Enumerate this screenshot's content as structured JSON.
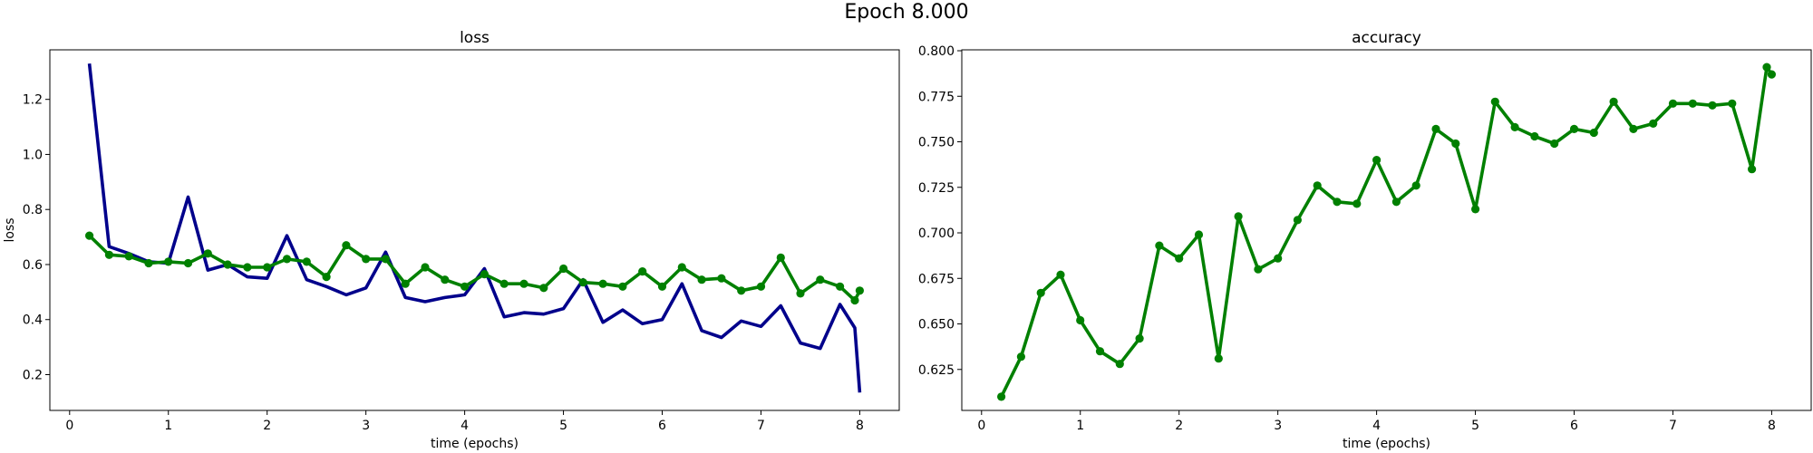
{
  "figure": {
    "suptitle": "Epoch 8.000"
  },
  "colors": {
    "train": "#00008b",
    "val": "#008000",
    "axis": "#000000",
    "background": "#ffffff"
  },
  "chart_data": [
    {
      "type": "line",
      "title": "loss",
      "xlabel": "time (epochs)",
      "ylabel": "loss",
      "xlim": [
        -0.2,
        8.4
      ],
      "ylim": [
        0.07,
        1.38
      ],
      "xticks": [
        0,
        1,
        2,
        3,
        4,
        5,
        6,
        7,
        8
      ],
      "xtick_labels": [
        "0",
        "1",
        "2",
        "3",
        "4",
        "5",
        "6",
        "7",
        "8"
      ],
      "yticks": [
        0.2,
        0.4,
        0.6,
        0.8,
        1.0,
        1.2
      ],
      "ytick_labels": [
        "0.2",
        "0.4",
        "0.6",
        "0.8",
        "1.0",
        "1.2"
      ],
      "grid": false,
      "series": [
        {
          "color": "#00008b",
          "markers": false,
          "x": [
            0.2,
            0.4,
            0.6,
            0.8,
            1.0,
            1.2,
            1.4,
            1.6,
            1.8,
            2.0,
            2.2,
            2.4,
            2.6,
            2.8,
            3.0,
            3.2,
            3.4,
            3.6,
            3.8,
            4.0,
            4.2,
            4.4,
            4.6,
            4.8,
            5.0,
            5.2,
            5.4,
            5.6,
            5.8,
            6.0,
            6.2,
            6.4,
            6.6,
            6.8,
            7.0,
            7.2,
            7.4,
            7.6,
            7.8,
            7.95,
            8.0
          ],
          "y": [
            1.33,
            0.665,
            0.64,
            0.61,
            0.605,
            0.845,
            0.58,
            0.6,
            0.555,
            0.55,
            0.705,
            0.545,
            0.52,
            0.49,
            0.515,
            0.645,
            0.48,
            0.465,
            0.48,
            0.49,
            0.585,
            0.41,
            0.425,
            0.42,
            0.44,
            0.545,
            0.39,
            0.435,
            0.385,
            0.4,
            0.53,
            0.36,
            0.335,
            0.395,
            0.375,
            0.45,
            0.315,
            0.295,
            0.455,
            0.37,
            0.135
          ]
        },
        {
          "color": "#008000",
          "markers": true,
          "x": [
            0.2,
            0.4,
            0.6,
            0.8,
            1.0,
            1.2,
            1.4,
            1.6,
            1.8,
            2.0,
            2.2,
            2.4,
            2.6,
            2.8,
            3.0,
            3.2,
            3.4,
            3.6,
            3.8,
            4.0,
            4.2,
            4.4,
            4.6,
            4.8,
            5.0,
            5.2,
            5.4,
            5.6,
            5.8,
            6.0,
            6.2,
            6.4,
            6.6,
            6.8,
            7.0,
            7.2,
            7.4,
            7.6,
            7.8,
            7.95,
            8.0
          ],
          "y": [
            0.705,
            0.635,
            0.63,
            0.605,
            0.61,
            0.605,
            0.64,
            0.6,
            0.59,
            0.59,
            0.62,
            0.61,
            0.555,
            0.67,
            0.62,
            0.62,
            0.53,
            0.59,
            0.545,
            0.52,
            0.565,
            0.53,
            0.53,
            0.515,
            0.585,
            0.535,
            0.53,
            0.52,
            0.575,
            0.52,
            0.59,
            0.545,
            0.55,
            0.505,
            0.52,
            0.625,
            0.495,
            0.545,
            0.52,
            0.47,
            0.505
          ]
        }
      ]
    },
    {
      "type": "line",
      "title": "accuracy",
      "xlabel": "time (epochs)",
      "ylabel": "",
      "xlim": [
        -0.2,
        8.4
      ],
      "ylim": [
        0.6025,
        0.8005
      ],
      "xticks": [
        0,
        1,
        2,
        3,
        4,
        5,
        6,
        7,
        8
      ],
      "xtick_labels": [
        "0",
        "1",
        "2",
        "3",
        "4",
        "5",
        "6",
        "7",
        "8"
      ],
      "yticks": [
        0.625,
        0.65,
        0.675,
        0.7,
        0.725,
        0.75,
        0.775,
        0.8
      ],
      "ytick_labels": [
        "0.625",
        "0.650",
        "0.675",
        "0.700",
        "0.725",
        "0.750",
        "0.775",
        "0.800"
      ],
      "grid": false,
      "series": [
        {
          "color": "#008000",
          "markers": true,
          "x": [
            0.2,
            0.4,
            0.6,
            0.8,
            1.0,
            1.2,
            1.4,
            1.6,
            1.8,
            2.0,
            2.2,
            2.4,
            2.6,
            2.8,
            3.0,
            3.2,
            3.4,
            3.6,
            3.8,
            4.0,
            4.2,
            4.4,
            4.6,
            4.8,
            5.0,
            5.2,
            5.4,
            5.6,
            5.8,
            6.0,
            6.2,
            6.4,
            6.6,
            6.8,
            7.0,
            7.2,
            7.4,
            7.6,
            7.8,
            7.95,
            8.0
          ],
          "y": [
            0.61,
            0.632,
            0.667,
            0.677,
            0.652,
            0.635,
            0.628,
            0.642,
            0.693,
            0.686,
            0.699,
            0.631,
            0.709,
            0.68,
            0.686,
            0.707,
            0.726,
            0.717,
            0.716,
            0.74,
            0.717,
            0.726,
            0.757,
            0.749,
            0.713,
            0.772,
            0.758,
            0.753,
            0.749,
            0.757,
            0.755,
            0.772,
            0.757,
            0.76,
            0.771,
            0.771,
            0.77,
            0.771,
            0.735,
            0.791,
            0.787
          ]
        }
      ]
    }
  ]
}
